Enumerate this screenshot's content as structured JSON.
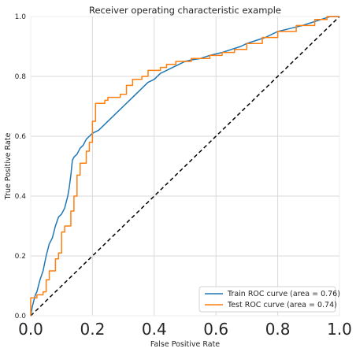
{
  "chart_data": {
    "type": "line",
    "title": "Receiver operating characteristic example",
    "xlabel": "False Positive Rate",
    "ylabel": "True Positive Rate",
    "xlim": [
      0.0,
      1.0
    ],
    "ylim": [
      0.0,
      1.0
    ],
    "x_ticks": [
      "0.0",
      "0.2",
      "0.4",
      "0.6",
      "0.8",
      "1.0"
    ],
    "y_ticks": [
      "0.0",
      "0.2",
      "0.4",
      "0.6",
      "0.8",
      "1.0"
    ],
    "grid": true,
    "legend_position": "lower-right",
    "series": [
      {
        "name": "Train ROC curve (area = 0.76)",
        "color": "#1f77b4",
        "style": "solid",
        "points": [
          [
            0.0,
            0.0
          ],
          [
            0.005,
            0.03
          ],
          [
            0.01,
            0.05
          ],
          [
            0.015,
            0.07
          ],
          [
            0.02,
            0.08
          ],
          [
            0.03,
            0.12
          ],
          [
            0.04,
            0.15
          ],
          [
            0.05,
            0.2
          ],
          [
            0.06,
            0.24
          ],
          [
            0.07,
            0.26
          ],
          [
            0.08,
            0.3
          ],
          [
            0.09,
            0.33
          ],
          [
            0.1,
            0.34
          ],
          [
            0.11,
            0.36
          ],
          [
            0.12,
            0.4
          ],
          [
            0.125,
            0.43
          ],
          [
            0.13,
            0.47
          ],
          [
            0.135,
            0.52
          ],
          [
            0.14,
            0.53
          ],
          [
            0.15,
            0.54
          ],
          [
            0.16,
            0.56
          ],
          [
            0.17,
            0.57
          ],
          [
            0.18,
            0.59
          ],
          [
            0.19,
            0.6
          ],
          [
            0.2,
            0.61
          ],
          [
            0.22,
            0.62
          ],
          [
            0.24,
            0.64
          ],
          [
            0.26,
            0.66
          ],
          [
            0.28,
            0.68
          ],
          [
            0.3,
            0.7
          ],
          [
            0.32,
            0.72
          ],
          [
            0.34,
            0.74
          ],
          [
            0.36,
            0.76
          ],
          [
            0.38,
            0.78
          ],
          [
            0.4,
            0.79
          ],
          [
            0.42,
            0.81
          ],
          [
            0.44,
            0.82
          ],
          [
            0.46,
            0.83
          ],
          [
            0.48,
            0.84
          ],
          [
            0.5,
            0.85
          ],
          [
            0.52,
            0.855
          ],
          [
            0.55,
            0.86
          ],
          [
            0.58,
            0.87
          ],
          [
            0.6,
            0.875
          ],
          [
            0.62,
            0.88
          ],
          [
            0.65,
            0.89
          ],
          [
            0.68,
            0.9
          ],
          [
            0.7,
            0.91
          ],
          [
            0.73,
            0.92
          ],
          [
            0.76,
            0.93
          ],
          [
            0.8,
            0.95
          ],
          [
            0.84,
            0.96
          ],
          [
            0.88,
            0.97
          ],
          [
            0.91,
            0.98
          ],
          [
            0.94,
            0.99
          ],
          [
            0.97,
            1.0
          ],
          [
            1.0,
            1.0
          ]
        ]
      },
      {
        "name": "Test ROC curve (area = 0.74)",
        "color": "#ff7f0e",
        "style": "solid",
        "points": [
          [
            0.0,
            0.0
          ],
          [
            0.0,
            0.06
          ],
          [
            0.02,
            0.06
          ],
          [
            0.02,
            0.07
          ],
          [
            0.04,
            0.07
          ],
          [
            0.04,
            0.08
          ],
          [
            0.05,
            0.08
          ],
          [
            0.05,
            0.12
          ],
          [
            0.06,
            0.12
          ],
          [
            0.06,
            0.15
          ],
          [
            0.08,
            0.15
          ],
          [
            0.08,
            0.19
          ],
          [
            0.09,
            0.19
          ],
          [
            0.09,
            0.21
          ],
          [
            0.1,
            0.21
          ],
          [
            0.1,
            0.28
          ],
          [
            0.11,
            0.28
          ],
          [
            0.11,
            0.3
          ],
          [
            0.13,
            0.3
          ],
          [
            0.13,
            0.35
          ],
          [
            0.14,
            0.35
          ],
          [
            0.14,
            0.4
          ],
          [
            0.15,
            0.4
          ],
          [
            0.15,
            0.47
          ],
          [
            0.16,
            0.47
          ],
          [
            0.16,
            0.51
          ],
          [
            0.18,
            0.51
          ],
          [
            0.18,
            0.55
          ],
          [
            0.19,
            0.55
          ],
          [
            0.19,
            0.58
          ],
          [
            0.2,
            0.58
          ],
          [
            0.2,
            0.65
          ],
          [
            0.21,
            0.65
          ],
          [
            0.21,
            0.71
          ],
          [
            0.24,
            0.71
          ],
          [
            0.24,
            0.72
          ],
          [
            0.25,
            0.72
          ],
          [
            0.25,
            0.73
          ],
          [
            0.29,
            0.73
          ],
          [
            0.29,
            0.74
          ],
          [
            0.31,
            0.74
          ],
          [
            0.31,
            0.77
          ],
          [
            0.33,
            0.77
          ],
          [
            0.33,
            0.79
          ],
          [
            0.36,
            0.79
          ],
          [
            0.36,
            0.8
          ],
          [
            0.38,
            0.8
          ],
          [
            0.38,
            0.82
          ],
          [
            0.42,
            0.82
          ],
          [
            0.42,
            0.83
          ],
          [
            0.44,
            0.83
          ],
          [
            0.44,
            0.84
          ],
          [
            0.47,
            0.84
          ],
          [
            0.47,
            0.85
          ],
          [
            0.52,
            0.85
          ],
          [
            0.52,
            0.86
          ],
          [
            0.58,
            0.86
          ],
          [
            0.58,
            0.87
          ],
          [
            0.62,
            0.87
          ],
          [
            0.62,
            0.88
          ],
          [
            0.66,
            0.88
          ],
          [
            0.66,
            0.89
          ],
          [
            0.7,
            0.89
          ],
          [
            0.7,
            0.91
          ],
          [
            0.75,
            0.91
          ],
          [
            0.75,
            0.93
          ],
          [
            0.8,
            0.93
          ],
          [
            0.8,
            0.95
          ],
          [
            0.86,
            0.95
          ],
          [
            0.86,
            0.97
          ],
          [
            0.92,
            0.97
          ],
          [
            0.92,
            0.99
          ],
          [
            0.96,
            0.99
          ],
          [
            0.96,
            1.0
          ],
          [
            1.0,
            1.0
          ]
        ]
      },
      {
        "name": "",
        "color": "#000000",
        "style": "dashed",
        "points": [
          [
            0.0,
            0.0
          ],
          [
            1.0,
            1.0
          ]
        ]
      }
    ]
  }
}
